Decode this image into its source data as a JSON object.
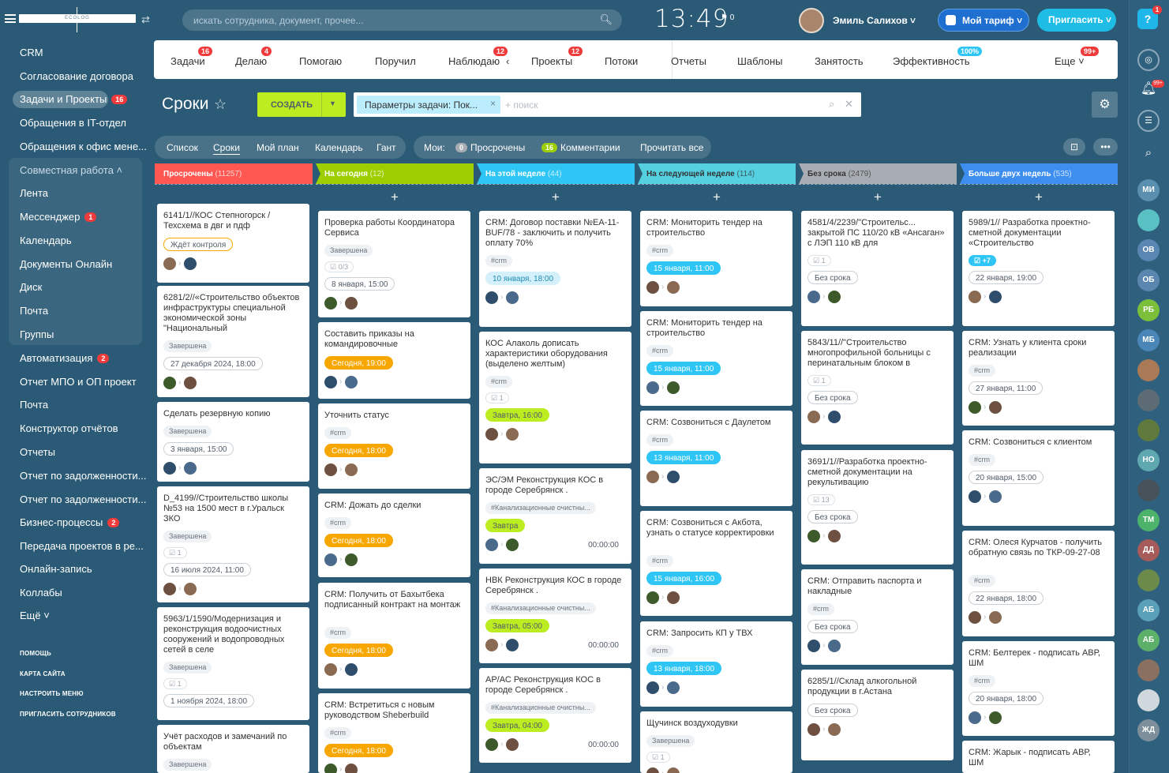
{
  "header": {
    "search_placeholder": "искать сотрудника, документ, прочее...",
    "time": "13:49",
    "flag_count": "0",
    "user_name": "Эмиль Салихов",
    "tariff": "Мой тариф",
    "invite": "Пригласить",
    "logo": "ECOLOG",
    "help_badge": "1"
  },
  "sidebar": {
    "items": [
      {
        "label": "CRM"
      },
      {
        "label": "Согласование договора"
      },
      {
        "label": "Задачи и Проекты",
        "count": "16"
      },
      {
        "label": "Обращения в IT-отдел"
      },
      {
        "label": "Обращения к офис мене..."
      },
      {
        "label": "Совместная работа ˄"
      },
      {
        "label": "Лента"
      },
      {
        "label": "Мессенджер",
        "count": "1"
      },
      {
        "label": "Календарь"
      },
      {
        "label": "Документы Онлайн"
      },
      {
        "label": "Диск"
      },
      {
        "label": "Почта"
      },
      {
        "label": "Группы"
      },
      {
        "label": "Автоматизация",
        "count": "2"
      },
      {
        "label": "Отчет МПО и ОП проект"
      },
      {
        "label": "Почта"
      },
      {
        "label": "Конструктор отчётов"
      },
      {
        "label": "Отчеты"
      },
      {
        "label": "Отчет по задолженности..."
      },
      {
        "label": "Отчет по задолженности..."
      },
      {
        "label": "Бизнес-процессы",
        "count": "2"
      },
      {
        "label": "Передача проектов в ре..."
      },
      {
        "label": "Онлайн-запись"
      },
      {
        "label": "Коллабы"
      },
      {
        "label": "Ещё ˅"
      }
    ],
    "footer": [
      "ПОМОЩЬ",
      "КАРТА САЙТА",
      "НАСТРОИТЬ МЕНЮ",
      "ПРИГЛАСИТЬ СОТРУДНИКОВ"
    ]
  },
  "nav": {
    "tabs": [
      {
        "label": "Задачи",
        "badge": "16"
      },
      {
        "label": "Делаю",
        "badge": "4"
      },
      {
        "label": "Помогаю"
      },
      {
        "label": "Поручил"
      },
      {
        "label": "Наблюдаю",
        "badge": "12"
      },
      {
        "label": "Проекты",
        "badge": "12"
      },
      {
        "label": "Потоки"
      },
      {
        "label": "Отчеты"
      },
      {
        "label": "Шаблоны"
      },
      {
        "label": "Занятость"
      },
      {
        "label": "Эффективность",
        "badge": "100%"
      },
      {
        "label": "Еще ˅",
        "badge": "99+"
      }
    ]
  },
  "toolbar": {
    "title": "Сроки",
    "create": "СОЗДАТЬ",
    "filter_tag": "Параметры задачи: Пок...",
    "filter_placeholder": "+ поиск"
  },
  "views": {
    "items": [
      "Список",
      "Сроки",
      "Мой план",
      "Календарь",
      "Гант"
    ],
    "active": "Сроки"
  },
  "mine": {
    "label": "Мои:",
    "overdue_count": "0",
    "overdue": "Просрочены",
    "comments_count": "16",
    "comments": "Комментарии",
    "read_all": "Прочитать все"
  },
  "columns": [
    {
      "name": "Просрочены",
      "count": "(11257)",
      "color": "#ff5752",
      "cards": [
        {
          "title": "6141/1//КОС Степногорск / Техсхема в двг и пдф",
          "deadline": "Ждёт контроля",
          "dl": "wait"
        },
        {
          "title": "6281/2//«Строительство объектов инфраструктуры специальной экономической зоны \"Национальный",
          "tag": "Завершена",
          "deadline": "27 декабря 2024, 18:00"
        },
        {
          "title": "Сделать резервную копию",
          "tag": "Завершена",
          "deadline": "3 января, 15:00"
        },
        {
          "title": "D_4199//Строительство школы №53 на 1500 мест в г.Уральск ЗКО",
          "tag": "Завершена",
          "check": "1",
          "deadline": "16 июля 2024, 11:00"
        },
        {
          "title": "5963/1/1590/Модернизация и реконструкция водоочистных сооружений и водопроводных сетей в селе",
          "tag": "Завершена",
          "check": "1",
          "deadline": "1 ноября 2024, 18:00"
        },
        {
          "title": "Учёт расходов и замечаний по объектам",
          "tag": "Завершена"
        }
      ]
    },
    {
      "name": "На сегодня",
      "count": "(12)",
      "color": "#9dcf00",
      "cards": [
        {
          "title": "Проверка работы Координатора Сервиса",
          "tag": "Завершена",
          "check": "0/3",
          "deadline": "8 января, 15:00"
        },
        {
          "title": "Составить приказы на командировочные",
          "deadline": "Сегодня, 19:00",
          "dl": "orange"
        },
        {
          "title": "Уточнить статус",
          "tag": "#crm",
          "deadline": "Сегодня, 18:00",
          "dl": "orange"
        },
        {
          "title": "CRM: Дожать до сделки",
          "tag": "#crm",
          "deadline": "Сегодня, 18:00",
          "dl": "orange"
        },
        {
          "title": "CRM: Получить от Бахытбека подписанный контракт на монтаж",
          "tag": "#crm",
          "deadline": "Сегодня, 18:00",
          "dl": "orange"
        },
        {
          "title": "CRM: Встретиться с новым руководством Sheberbuild",
          "tag": "#crm",
          "deadline": "Сегодня, 18:00",
          "dl": "orange"
        }
      ]
    },
    {
      "name": "На этой неделе",
      "count": "(44)",
      "color": "#2fc6f6",
      "cards": [
        {
          "title": "CRM: Договор поставки №EA-11-BUF/78 - заключить и получить оплату 70%",
          "tag": "#crm",
          "deadline": "10 января, 18:00",
          "dl": "lblue"
        },
        {
          "title": "КОС Алаколь дописать характеристики оборудования (выделено желтым)",
          "tag": "#crm",
          "check": "1",
          "deadline": "Завтра, 16:00",
          "dl": "green"
        },
        {
          "title": "ЭС/ЭМ Реконструкция КОС в городе Серебрянск .",
          "tag": "#Канализационные очистны...",
          "deadline": "Завтра",
          "dl": "green",
          "timer": "00:00:00"
        },
        {
          "title": "НВК Реконструкция КОС в городе Серебрянск .",
          "tag": "#Канализационные очистны...",
          "deadline": "Завтра, 05:00",
          "dl": "green",
          "timer": "00:00:00"
        },
        {
          "title": "АР/АС Реконструкция КОС в городе Серебрянск .",
          "tag": "#Канализационные очистны...",
          "deadline": "Завтра, 04:00",
          "dl": "green",
          "timer": "00:00:00"
        }
      ]
    },
    {
      "name": "На следующей неделе",
      "count": "(114)",
      "color": "#55d0e0",
      "cards": [
        {
          "title": "CRM: Мониторить тендер на строительство",
          "tag": "#crm",
          "deadline": "15 января, 11:00",
          "dl": "blue"
        },
        {
          "title": "CRM: Мониторить тендер на строительство",
          "tag": "#crm",
          "deadline": "15 января, 11:00",
          "dl": "blue"
        },
        {
          "title": "CRM: Созвониться с Даулетом",
          "tag": "#crm",
          "deadline": "13 января, 11:00",
          "dl": "blue"
        },
        {
          "title": "CRM: Созвониться с Акбота, узнать о статусе корректировки",
          "tag": "#crm",
          "deadline": "15 января, 16:00",
          "dl": "blue"
        },
        {
          "title": "CRM: Запросить КП у ТВХ",
          "tag": "#crm",
          "deadline": "13 января, 18:00",
          "dl": "blue"
        },
        {
          "title": "Щучинск воздуходувки",
          "tag": "Завершена",
          "check": "1"
        }
      ]
    },
    {
      "name": "Без срока",
      "count": "(2479)",
      "color": "#a8adb4",
      "cards": [
        {
          "title": "4581/4/2239/\"Строительс... закрытой ПС 110/20 кВ «Ансаган» с ЛЭП 110 кВ для",
          "check": "1",
          "deadline": "Без срока"
        },
        {
          "title": "5843/11//\"Строительство многопрофильной больницы с перинатальным блоком в",
          "check": "1",
          "deadline": "Без срока"
        },
        {
          "title": "3691/1//Разработка проектно-сметной документации на рекультивацию",
          "check": "13",
          "deadline": "Без срока"
        },
        {
          "title": "CRM: Отправить паспорта и накладные",
          "tag": "#crm",
          "deadline": "Без срока"
        },
        {
          "title": "6285/1//Склад алкогольной продукции в г.Астана",
          "deadline": "Без срока"
        }
      ]
    },
    {
      "name": "Больше двух недель",
      "count": "(535)",
      "color": "#3e8ef0",
      "cards": [
        {
          "title": "5989/1// Разработка проектно-сметной документации «Строительство",
          "check": "+7",
          "deadline": "22 января, 19:00"
        },
        {
          "title": "CRM: Узнать у клиента сроки реализации",
          "tag": "#crm",
          "deadline": "27 января, 11:00"
        },
        {
          "title": "CRM: Созвониться с клиентом",
          "tag": "#crm",
          "deadline": "20 января, 15:00"
        },
        {
          "title": "CRM: Олеся Курчатов - получить обратную связь по ТКР-09-27-08",
          "tag": "#crm",
          "deadline": "22 января, 18:00"
        },
        {
          "title": "CRM: Белтерек - подписать АВР, ШМ",
          "tag": "#crm",
          "deadline": "20 января, 18:00"
        },
        {
          "title": "CRM: Жарык - подписать АВР, ШМ"
        }
      ]
    }
  ],
  "right_bar": {
    "avatars": [
      "МИ",
      "ОВ",
      "ОБ",
      "РБ",
      "МБ",
      "НО",
      "ТМ",
      "ДД",
      "АБ",
      "АБ",
      "ЖД"
    ],
    "notif_badge": "99+"
  }
}
